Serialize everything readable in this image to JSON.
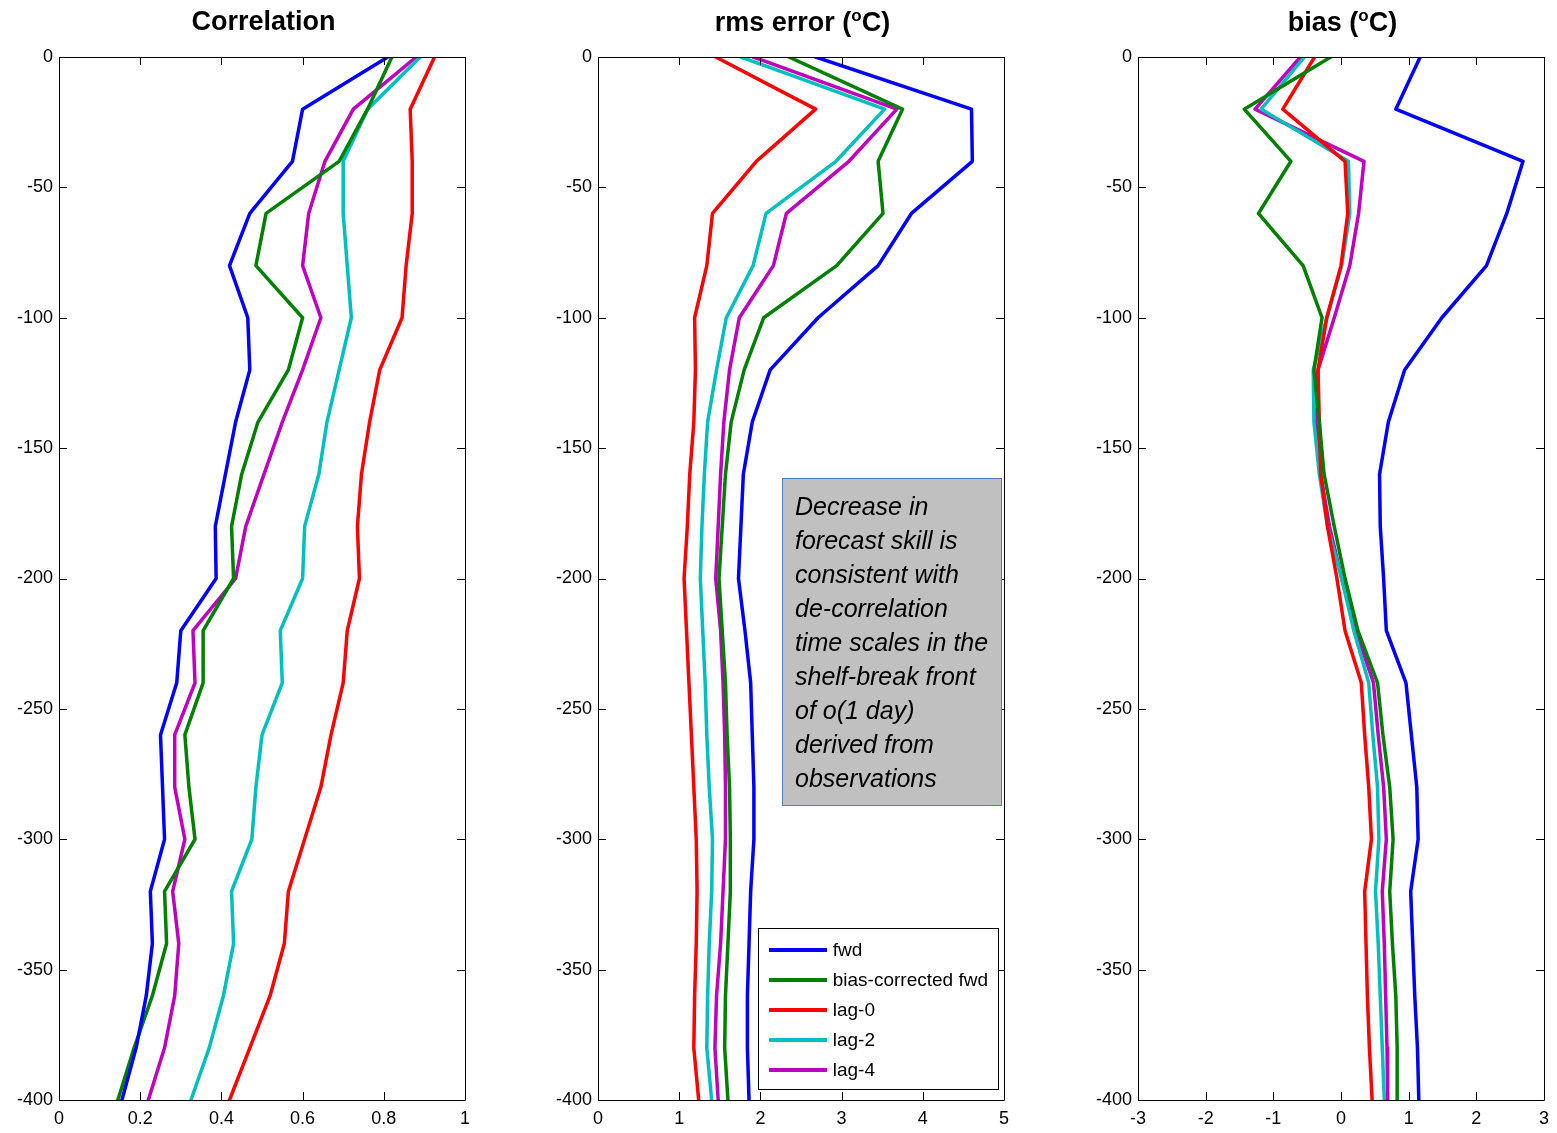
{
  "chart_data": [
    {
      "type": "line",
      "title": "Correlation",
      "xlim": [
        0,
        1
      ],
      "xticks": [
        0,
        0.2,
        0.4,
        0.6,
        0.8,
        1
      ],
      "ylim": [
        -400,
        0
      ],
      "yticks": [
        -400,
        -350,
        -300,
        -250,
        -200,
        -150,
        -100,
        -50,
        0
      ],
      "grid": false,
      "legend": false,
      "marker": "none",
      "line_style": "solid",
      "series": [
        {
          "color": "#0000ff",
          "x": [
            0.81,
            0.6,
            0.575,
            0.47,
            0.42,
            0.465,
            0.47,
            0.435,
            0.41,
            0.385,
            0.387,
            0.3,
            0.29,
            0.25,
            0.255,
            0.26,
            0.225,
            0.23,
            0.215,
            0.19,
            0.155
          ],
          "values": [
            0,
            -20,
            -40,
            -60,
            -80,
            -100,
            -120,
            -140,
            -160,
            -180,
            -200,
            -220,
            -240,
            -260,
            -280,
            -300,
            -320,
            -340,
            -360,
            -380,
            -400
          ]
        },
        {
          "color": "#008000",
          "x": [
            0.82,
            0.76,
            0.69,
            0.51,
            0.485,
            0.6,
            0.565,
            0.49,
            0.45,
            0.425,
            0.43,
            0.355,
            0.355,
            0.31,
            0.32,
            0.335,
            0.26,
            0.265,
            0.23,
            0.185,
            0.145
          ],
          "values": [
            0,
            -20,
            -40,
            -60,
            -80,
            -100,
            -120,
            -140,
            -160,
            -180,
            -200,
            -220,
            -240,
            -260,
            -280,
            -300,
            -320,
            -340,
            -360,
            -380,
            -400
          ]
        },
        {
          "color": "#ff0000",
          "x": [
            0.925,
            0.865,
            0.87,
            0.87,
            0.855,
            0.845,
            0.79,
            0.765,
            0.745,
            0.735,
            0.74,
            0.71,
            0.7,
            0.67,
            0.645,
            0.605,
            0.565,
            0.555,
            0.52,
            0.47,
            0.42
          ],
          "values": [
            0,
            -20,
            -40,
            -60,
            -80,
            -100,
            -120,
            -140,
            -160,
            -180,
            -200,
            -220,
            -240,
            -260,
            -280,
            -300,
            -320,
            -340,
            -360,
            -380,
            -400
          ]
        },
        {
          "color": "#00bfbf",
          "x": [
            0.89,
            0.76,
            0.7,
            0.7,
            0.71,
            0.72,
            0.69,
            0.66,
            0.64,
            0.605,
            0.6,
            0.545,
            0.55,
            0.5,
            0.485,
            0.475,
            0.425,
            0.43,
            0.405,
            0.37,
            0.325
          ],
          "values": [
            0,
            -20,
            -40,
            -60,
            -80,
            -100,
            -120,
            -140,
            -160,
            -180,
            -200,
            -220,
            -240,
            -260,
            -280,
            -300,
            -320,
            -340,
            -360,
            -380,
            -400
          ]
        },
        {
          "color": "#bf00bf",
          "x": [
            0.88,
            0.725,
            0.655,
            0.615,
            0.6,
            0.645,
            0.6,
            0.55,
            0.505,
            0.46,
            0.435,
            0.33,
            0.335,
            0.285,
            0.285,
            0.31,
            0.28,
            0.295,
            0.285,
            0.26,
            0.22
          ],
          "values": [
            0,
            -20,
            -40,
            -60,
            -80,
            -100,
            -120,
            -140,
            -160,
            -180,
            -200,
            -220,
            -240,
            -260,
            -280,
            -300,
            -320,
            -340,
            -360,
            -380,
            -400
          ]
        }
      ]
    },
    {
      "type": "line",
      "title": "rms error ($^{o}$C)",
      "xlim": [
        0,
        5
      ],
      "xticks": [
        0,
        1,
        2,
        3,
        4,
        5
      ],
      "ylim": [
        -400,
        0
      ],
      "yticks": [
        -400,
        -350,
        -300,
        -250,
        -200,
        -150,
        -100,
        -50,
        0
      ],
      "grid": false,
      "legend": "bottom right",
      "marker": "none",
      "line_style": "solid",
      "annotations": [
        "Decrease in forecast skill is consistent with de-correlation time scales in the shelf-break front of o(1 day) derived from observations"
      ],
      "series": [
        {
          "name": "fwd",
          "color": "#0000ff",
          "x": [
            2.68,
            4.6,
            4.61,
            3.86,
            3.45,
            2.71,
            2.12,
            1.9,
            1.79,
            1.76,
            1.73,
            1.81,
            1.88,
            1.9,
            1.92,
            1.92,
            1.88,
            1.86,
            1.84,
            1.84,
            1.86
          ],
          "values": [
            0,
            -20,
            -40,
            -60,
            -80,
            -100,
            -120,
            -140,
            -160,
            -180,
            -200,
            -220,
            -240,
            -260,
            -280,
            -300,
            -320,
            -340,
            -360,
            -380,
            -400
          ]
        },
        {
          "name": "bias-corrected fwd",
          "color": "#008000",
          "x": [
            2.35,
            3.75,
            3.45,
            3.51,
            2.94,
            2.04,
            1.8,
            1.64,
            1.57,
            1.53,
            1.49,
            1.53,
            1.57,
            1.59,
            1.62,
            1.63,
            1.63,
            1.6,
            1.57,
            1.56,
            1.6
          ],
          "values": [
            0,
            -20,
            -40,
            -60,
            -80,
            -100,
            -120,
            -140,
            -160,
            -180,
            -200,
            -220,
            -240,
            -260,
            -280,
            -300,
            -320,
            -340,
            -360,
            -380,
            -400
          ]
        },
        {
          "name": "lag-0",
          "color": "#ff0000",
          "x": [
            1.45,
            2.68,
            1.95,
            1.41,
            1.34,
            1.19,
            1.2,
            1.18,
            1.13,
            1.1,
            1.06,
            1.09,
            1.12,
            1.15,
            1.18,
            1.21,
            1.22,
            1.21,
            1.19,
            1.18,
            1.24
          ],
          "values": [
            0,
            -20,
            -40,
            -60,
            -80,
            -100,
            -120,
            -140,
            -160,
            -180,
            -200,
            -220,
            -240,
            -260,
            -280,
            -300,
            -320,
            -340,
            -360,
            -380,
            -400
          ]
        },
        {
          "name": "lag-2",
          "color": "#00bfbf",
          "x": [
            1.76,
            3.53,
            2.93,
            2.07,
            1.91,
            1.58,
            1.46,
            1.35,
            1.31,
            1.28,
            1.26,
            1.29,
            1.32,
            1.34,
            1.37,
            1.41,
            1.4,
            1.37,
            1.35,
            1.34,
            1.4
          ],
          "values": [
            0,
            -20,
            -40,
            -60,
            -80,
            -100,
            -120,
            -140,
            -160,
            -180,
            -200,
            -220,
            -240,
            -260,
            -280,
            -300,
            -320,
            -340,
            -360,
            -380,
            -400
          ]
        },
        {
          "name": "lag-4",
          "color": "#bf00bf",
          "x": [
            1.91,
            3.68,
            3.09,
            2.32,
            2.16,
            1.74,
            1.62,
            1.55,
            1.51,
            1.48,
            1.45,
            1.51,
            1.54,
            1.56,
            1.57,
            1.57,
            1.54,
            1.51,
            1.46,
            1.44,
            1.48
          ],
          "values": [
            0,
            -20,
            -40,
            -60,
            -80,
            -100,
            -120,
            -140,
            -160,
            -180,
            -200,
            -220,
            -240,
            -260,
            -280,
            -300,
            -320,
            -340,
            -360,
            -380,
            -400
          ]
        }
      ]
    },
    {
      "type": "line",
      "title": "bias ($^{o}$C)",
      "xlim": [
        -3,
        3
      ],
      "xticks": [
        -3,
        -2,
        -1,
        0,
        1,
        2,
        3
      ],
      "ylim": [
        -400,
        0
      ],
      "yticks": [
        -400,
        -350,
        -300,
        -250,
        -200,
        -150,
        -100,
        -50,
        0
      ],
      "grid": false,
      "legend": false,
      "marker": "none",
      "line_style": "solid",
      "series": [
        {
          "color": "#0000ff",
          "x": [
            1.17,
            0.81,
            2.69,
            2.45,
            2.15,
            1.49,
            0.94,
            0.7,
            0.57,
            0.58,
            0.63,
            0.67,
            0.96,
            1.04,
            1.12,
            1.14,
            1.03,
            1.06,
            1.09,
            1.13,
            1.15
          ],
          "values": [
            0,
            -20,
            -40,
            -60,
            -80,
            -100,
            -120,
            -140,
            -160,
            -180,
            -200,
            -220,
            -240,
            -260,
            -280,
            -300,
            -320,
            -340,
            -360,
            -380,
            -400
          ]
        },
        {
          "color": "#008000",
          "x": [
            -0.15,
            -1.43,
            -0.74,
            -1.22,
            -0.56,
            -0.28,
            -0.4,
            -0.32,
            -0.25,
            -0.1,
            0.06,
            0.25,
            0.54,
            0.62,
            0.72,
            0.77,
            0.72,
            0.76,
            0.81,
            0.83,
            0.83
          ],
          "values": [
            0,
            -20,
            -40,
            -60,
            -80,
            -100,
            -120,
            -140,
            -160,
            -180,
            -200,
            -220,
            -240,
            -260,
            -280,
            -300,
            -320,
            -340,
            -360,
            -380,
            -400
          ]
        },
        {
          "color": "#ff0000",
          "x": [
            -0.39,
            -0.86,
            0.06,
            0.1,
            0.0,
            -0.21,
            -0.34,
            -0.32,
            -0.3,
            -0.2,
            -0.06,
            0.06,
            0.3,
            0.35,
            0.41,
            0.45,
            0.35,
            0.37,
            0.39,
            0.42,
            0.46
          ],
          "values": [
            0,
            -20,
            -40,
            -60,
            -80,
            -100,
            -120,
            -140,
            -160,
            -180,
            -200,
            -220,
            -240,
            -260,
            -280,
            -300,
            -320,
            -340,
            -360,
            -380,
            -400
          ]
        },
        {
          "color": "#00bfbf",
          "x": [
            -0.54,
            -1.18,
            0.11,
            0.13,
            0.01,
            -0.21,
            -0.41,
            -0.4,
            -0.32,
            -0.2,
            0.01,
            0.19,
            0.41,
            0.47,
            0.54,
            0.56,
            0.51,
            0.55,
            0.58,
            0.61,
            0.64
          ],
          "values": [
            0,
            -20,
            -40,
            -60,
            -80,
            -100,
            -120,
            -140,
            -160,
            -180,
            -200,
            -220,
            -240,
            -260,
            -280,
            -300,
            -320,
            -340,
            -360,
            -380,
            -400
          ]
        },
        {
          "color": "#bf00bf",
          "x": [
            -0.6,
            -1.27,
            0.34,
            0.26,
            0.13,
            -0.1,
            -0.34,
            -0.37,
            -0.3,
            -0.17,
            0.01,
            0.22,
            0.48,
            0.55,
            0.63,
            0.67,
            0.61,
            0.64,
            0.66,
            0.68,
            0.69
          ],
          "values": [
            0,
            -20,
            -40,
            -60,
            -80,
            -100,
            -120,
            -140,
            -160,
            -180,
            -200,
            -220,
            -240,
            -260,
            -280,
            -300,
            -320,
            -340,
            -360,
            -380,
            -400
          ]
        }
      ]
    }
  ]
}
